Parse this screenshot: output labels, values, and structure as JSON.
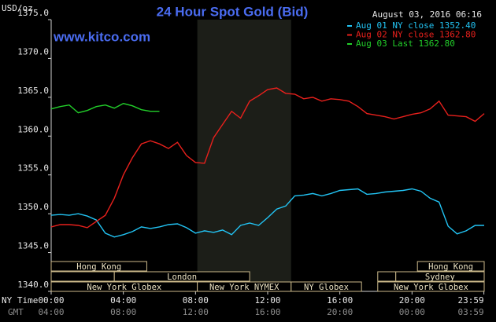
{
  "chart_data": {
    "type": "line",
    "title": "24 Hour Spot Gold (Bid)",
    "timestamp": "August 03, 2016 06:16",
    "y_label": "USD/oz",
    "watermark": "www.kitco.com",
    "x_label": "NY Time",
    "x2_label": "GMT",
    "xlim": [
      0,
      24
    ],
    "xticks": [
      {
        "value": 0,
        "label": "00:00"
      },
      {
        "value": 4,
        "label": "04:00"
      },
      {
        "value": 8,
        "label": "08:00"
      },
      {
        "value": 12,
        "label": "12:00"
      },
      {
        "value": 16,
        "label": "16:00"
      },
      {
        "value": 20,
        "label": "20:00"
      },
      {
        "value": 23.983,
        "label": "23:59"
      }
    ],
    "x2ticks": [
      "04:00",
      "08:00",
      "12:00",
      "16:00",
      "20:00",
      "00:00",
      "03:59"
    ],
    "ylim": [
      1340,
      1375
    ],
    "yticks": [
      {
        "value": 1340,
        "label": "1340.0"
      },
      {
        "value": 1345,
        "label": "1345.0"
      },
      {
        "value": 1350,
        "label": "1350.0"
      },
      {
        "value": 1355,
        "label": "1355.0"
      },
      {
        "value": 1360,
        "label": "1360.0"
      },
      {
        "value": 1365,
        "label": "1365.0"
      },
      {
        "value": 1370,
        "label": "1370.0"
      },
      {
        "value": 1375,
        "label": "1375.0"
      }
    ],
    "grid": false,
    "highlight_range": [
      8.1,
      13.3
    ],
    "x": [
      0,
      0.5,
      1,
      1.5,
      2,
      2.5,
      3,
      3.5,
      4,
      4.5,
      5,
      5.5,
      6,
      6.5,
      7,
      7.5,
      8,
      8.5,
      9,
      9.5,
      10,
      10.5,
      11,
      11.5,
      12,
      12.5,
      13,
      13.5,
      14,
      14.5,
      15,
      15.5,
      16,
      16.5,
      17,
      17.5,
      18,
      18.5,
      19,
      19.5,
      20,
      20.5,
      21,
      21.5,
      22,
      22.5,
      23,
      23.5,
      24
    ],
    "series": [
      {
        "name": "Aug 01 NY close 1352.40",
        "color": "#22c4f4",
        "values": [
          1349.8,
          1349.9,
          1349.8,
          1350.0,
          1349.7,
          1349.2,
          1347.5,
          1347.0,
          1347.3,
          1347.7,
          1348.3,
          1348.1,
          1348.3,
          1348.6,
          1348.7,
          1348.2,
          1347.5,
          1347.8,
          1347.6,
          1347.9,
          1347.3,
          1348.5,
          1348.8,
          1348.5,
          1349.5,
          1350.6,
          1351.0,
          1352.3,
          1352.4,
          1352.6,
          1352.3,
          1352.6,
          1353.0,
          1353.1,
          1353.2,
          1352.5,
          1352.6,
          1352.8,
          1352.9,
          1353.0,
          1353.2,
          1352.9,
          1352.0,
          1351.5,
          1348.4,
          1347.4,
          1347.8,
          1348.5,
          1348.5
        ]
      },
      {
        "name": "Aug 02 NY close 1362.80",
        "color": "#e8201c",
        "values": [
          1348.3,
          1348.6,
          1348.6,
          1348.5,
          1348.2,
          1349.0,
          1349.8,
          1352.0,
          1355.0,
          1357.2,
          1359.0,
          1359.4,
          1359.0,
          1358.4,
          1359.2,
          1357.5,
          1356.6,
          1356.5,
          1359.8,
          1361.5,
          1363.2,
          1362.3,
          1364.5,
          1365.2,
          1366.0,
          1366.2,
          1365.5,
          1365.4,
          1364.8,
          1365.0,
          1364.5,
          1364.8,
          1364.7,
          1364.5,
          1363.8,
          1362.9,
          1362.7,
          1362.5,
          1362.2,
          1362.5,
          1362.8,
          1363.0,
          1363.5,
          1364.5,
          1362.7,
          1362.6,
          1362.5,
          1361.9,
          1362.9
        ]
      },
      {
        "name": "Aug 03 Last 1362.80",
        "color": "#22d02a",
        "values": [
          1363.5,
          1363.8,
          1364.0,
          1363.0,
          1363.3,
          1363.8,
          1364.0,
          1363.6,
          1364.2,
          1363.9,
          1363.4,
          1363.2,
          1363.2,
          null,
          null,
          null,
          null,
          null,
          null,
          null,
          null,
          null,
          null,
          null,
          null,
          null,
          null,
          null,
          null,
          null,
          null,
          null,
          null,
          null,
          null,
          null,
          null,
          null,
          null,
          null,
          null,
          null,
          null,
          null,
          null,
          null,
          null,
          null,
          null
        ]
      }
    ],
    "sessions": [
      {
        "name": "Hong Kong",
        "row": 0,
        "range": [
          0,
          5.3
        ]
      },
      {
        "name": "Hong Kong",
        "row": 0,
        "range": [
          20.3,
          24
        ]
      },
      {
        "name": null,
        "row": 1,
        "range": [
          0,
          3.5
        ]
      },
      {
        "name": "London",
        "row": 1,
        "range": [
          3.5,
          11.0
        ]
      },
      {
        "name": null,
        "row": 1,
        "range": [
          18.1,
          19.1
        ]
      },
      {
        "name": "Sydney",
        "row": 1,
        "range": [
          19.1,
          24
        ]
      },
      {
        "name": "New York Globex",
        "row": 2,
        "range": [
          0,
          8.1
        ]
      },
      {
        "name": "New York NYMEX",
        "row": 2,
        "range": [
          8.1,
          13.3
        ]
      },
      {
        "name": "NY Globex",
        "row": 2,
        "range": [
          13.3,
          17.2
        ]
      },
      {
        "name": "New York Globex",
        "row": 2,
        "range": [
          18.1,
          24
        ]
      }
    ]
  }
}
